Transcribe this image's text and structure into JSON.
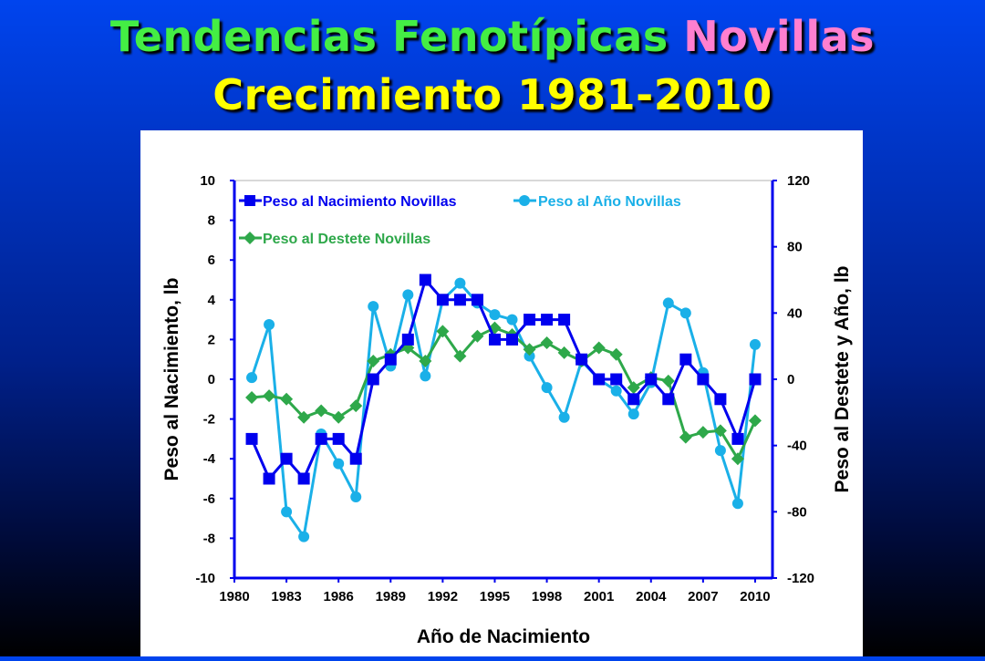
{
  "slide": {
    "title_part1": "Tendencias Fenotípicas",
    "title_part2": "Novillas",
    "title_line2": "Crecimiento 1981-2010",
    "colors": {
      "title_green": "#44ee44",
      "title_pink": "#ff7fd0",
      "title_yellow": "#ffff00"
    }
  },
  "chart_data": {
    "type": "line",
    "xlabel": "Año de Nacimiento",
    "ylabel_left": "Peso al Nacimiento, lb",
    "ylabel_right": "Peso al Destete y Año, lb",
    "xlim": [
      1980,
      2011
    ],
    "ylim_left": [
      -10,
      10
    ],
    "ylim_right": [
      -120,
      120
    ],
    "x_ticks": [
      "1980",
      "1983",
      "1986",
      "1989",
      "1992",
      "1995",
      "1998",
      "2001",
      "2004",
      "2007",
      "2010"
    ],
    "y_ticks_left": [
      "10",
      "8",
      "6",
      "4",
      "2",
      "0",
      "-2",
      "-4",
      "-6",
      "-8",
      "-10"
    ],
    "y_ticks_right": [
      "120",
      "80",
      "40",
      "0",
      "-40",
      "-80",
      "-120"
    ],
    "legend_position": "top-left",
    "x": [
      1981,
      1982,
      1983,
      1984,
      1985,
      1986,
      1987,
      1988,
      1989,
      1990,
      1991,
      1992,
      1993,
      1994,
      1995,
      1996,
      1997,
      1998,
      1999,
      2000,
      2001,
      2002,
      2003,
      2004,
      2005,
      2006,
      2007,
      2008,
      2009,
      2010
    ],
    "series": [
      {
        "name": "Peso al Nacimiento Novillas",
        "axis": "left",
        "color": "#0000ee",
        "marker": "square",
        "values": [
          -3,
          -5,
          -4,
          -5,
          -3,
          -3,
          -4,
          0,
          1,
          2,
          5,
          4,
          4,
          4,
          2,
          2,
          3,
          3,
          3,
          1,
          0,
          0,
          -1,
          0,
          -1,
          1,
          0,
          -1,
          -3,
          0
        ]
      },
      {
        "name": "Peso al Año Novillas",
        "axis": "right",
        "color": "#1ab0e8",
        "marker": "circle",
        "values": [
          1,
          33,
          -80,
          -95,
          -33,
          -51,
          -71,
          44,
          8,
          51,
          2,
          48,
          58,
          46,
          39,
          36,
          14,
          -5,
          -23,
          11,
          0,
          -7,
          -21,
          -2,
          46,
          40,
          4,
          -43,
          -75,
          21
        ]
      },
      {
        "name": "Peso al Destete Novillas",
        "axis": "right",
        "color": "#2ea84a",
        "marker": "diamond",
        "values": [
          -11,
          -10,
          -12,
          -23,
          -19,
          -23,
          -16,
          11,
          15,
          19,
          11,
          29,
          14,
          26,
          31,
          27,
          18,
          22,
          16,
          11,
          19,
          15,
          -5,
          1,
          -1,
          -35,
          -32,
          -31,
          -48,
          -25
        ]
      }
    ]
  }
}
